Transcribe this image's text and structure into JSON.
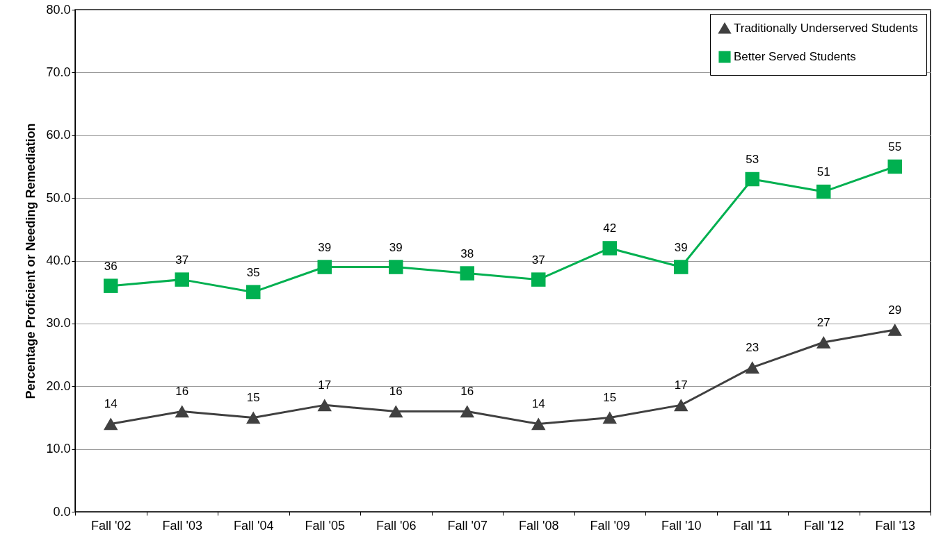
{
  "chart_data": {
    "type": "line",
    "ylabel": "Percentage Proficient or Needing Remediation",
    "categories": [
      "Fall '02",
      "Fall '03",
      "Fall '04",
      "Fall '05",
      "Fall '06",
      "Fall '07",
      "Fall '08",
      "Fall '09",
      "Fall '10",
      "Fall '11",
      "Fall '12",
      "Fall '13"
    ],
    "series": [
      {
        "name": "Traditionally Underserved Students",
        "color": "#404040",
        "marker": "triangle",
        "values": [
          14,
          16,
          15,
          17,
          16,
          16,
          14,
          15,
          17,
          23,
          27,
          29
        ]
      },
      {
        "name": "Better Served Students",
        "color": "#00b050",
        "marker": "square",
        "values": [
          36,
          37,
          35,
          39,
          39,
          38,
          37,
          42,
          39,
          53,
          51,
          55
        ]
      }
    ],
    "ylim": [
      0,
      80
    ],
    "yticks": [
      {
        "value": 0,
        "label": "0.0"
      },
      {
        "value": 10,
        "label": "10.0"
      },
      {
        "value": 20,
        "label": "20.0"
      },
      {
        "value": 30,
        "label": "30.0"
      },
      {
        "value": 40,
        "label": "40.0"
      },
      {
        "value": 50,
        "label": "50.0"
      },
      {
        "value": 60,
        "label": "60.0"
      },
      {
        "value": 70,
        "label": "70.0"
      },
      {
        "value": 80,
        "label": "80.0"
      }
    ],
    "grid": "y",
    "legend": "top right",
    "data_labels": true
  }
}
